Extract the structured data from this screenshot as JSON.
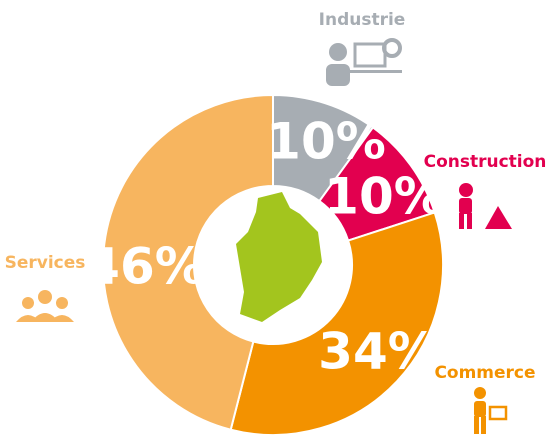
{
  "chart_data": {
    "type": "donut",
    "categories": [
      "Industrie",
      "Construction",
      "Commerce",
      "Services"
    ],
    "values": [
      10,
      10,
      34,
      46
    ],
    "value_labels": [
      "10%",
      "10%",
      "34%",
      "46%"
    ],
    "colors": [
      "#a7adb3",
      "#e2004f",
      "#f39200",
      "#f7b55f"
    ]
  }
}
